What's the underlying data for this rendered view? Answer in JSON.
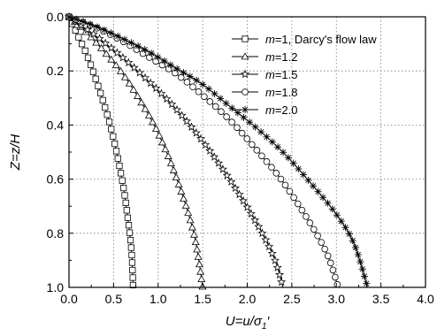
{
  "chart_data": {
    "type": "line",
    "xlabel": "U=u/σ1′",
    "ylabel": "Z=z/H",
    "xlim": [
      0.0,
      4.0
    ],
    "ylim": [
      0.0,
      1.0
    ],
    "y_inverted": true,
    "x_ticks": [
      "0.0",
      "0.5",
      "1.0",
      "1.5",
      "2.0",
      "2.5",
      "3.0",
      "3.5",
      "4.0"
    ],
    "y_ticks": [
      "0.0",
      "0.2",
      "0.4",
      "0.6",
      "0.8",
      "1.0"
    ],
    "grid": true,
    "legend_position": "top-right",
    "series": [
      {
        "name": "m=1, Darcy's flow law",
        "marker": "square",
        "x": [
          0.0,
          0.1,
          0.2,
          0.3,
          0.4,
          0.5,
          0.6,
          0.65,
          0.7,
          0.72
        ],
        "y": [
          0.0,
          0.07,
          0.14,
          0.23,
          0.33,
          0.45,
          0.61,
          0.72,
          0.86,
          1.0
        ]
      },
      {
        "name": "m=1.2",
        "marker": "triangle",
        "x": [
          0.0,
          0.2,
          0.4,
          0.6,
          0.8,
          1.0,
          1.2,
          1.4,
          1.5
        ],
        "y": [
          0.0,
          0.06,
          0.13,
          0.21,
          0.31,
          0.43,
          0.59,
          0.8,
          1.0
        ]
      },
      {
        "name": "m=1.5",
        "marker": "star",
        "x": [
          0.0,
          0.3,
          0.6,
          0.9,
          1.2,
          1.5,
          1.8,
          2.1,
          2.3,
          2.4
        ],
        "y": [
          0.0,
          0.07,
          0.15,
          0.24,
          0.34,
          0.46,
          0.6,
          0.76,
          0.89,
          1.0
        ]
      },
      {
        "name": "m=1.8",
        "marker": "circle",
        "x": [
          0.0,
          0.3,
          0.6,
          0.9,
          1.2,
          1.5,
          1.8,
          2.1,
          2.4,
          2.7,
          2.9,
          3.02
        ],
        "y": [
          0.0,
          0.04,
          0.09,
          0.15,
          0.21,
          0.29,
          0.38,
          0.49,
          0.61,
          0.76,
          0.88,
          1.0
        ]
      },
      {
        "name": "m=2.0",
        "marker": "asterisk",
        "x": [
          0.0,
          0.3,
          0.6,
          0.9,
          1.2,
          1.5,
          1.8,
          2.1,
          2.4,
          2.7,
          3.0,
          3.2,
          3.35
        ],
        "y": [
          0.0,
          0.035,
          0.08,
          0.13,
          0.19,
          0.25,
          0.33,
          0.41,
          0.5,
          0.61,
          0.73,
          0.84,
          1.0
        ]
      }
    ]
  }
}
